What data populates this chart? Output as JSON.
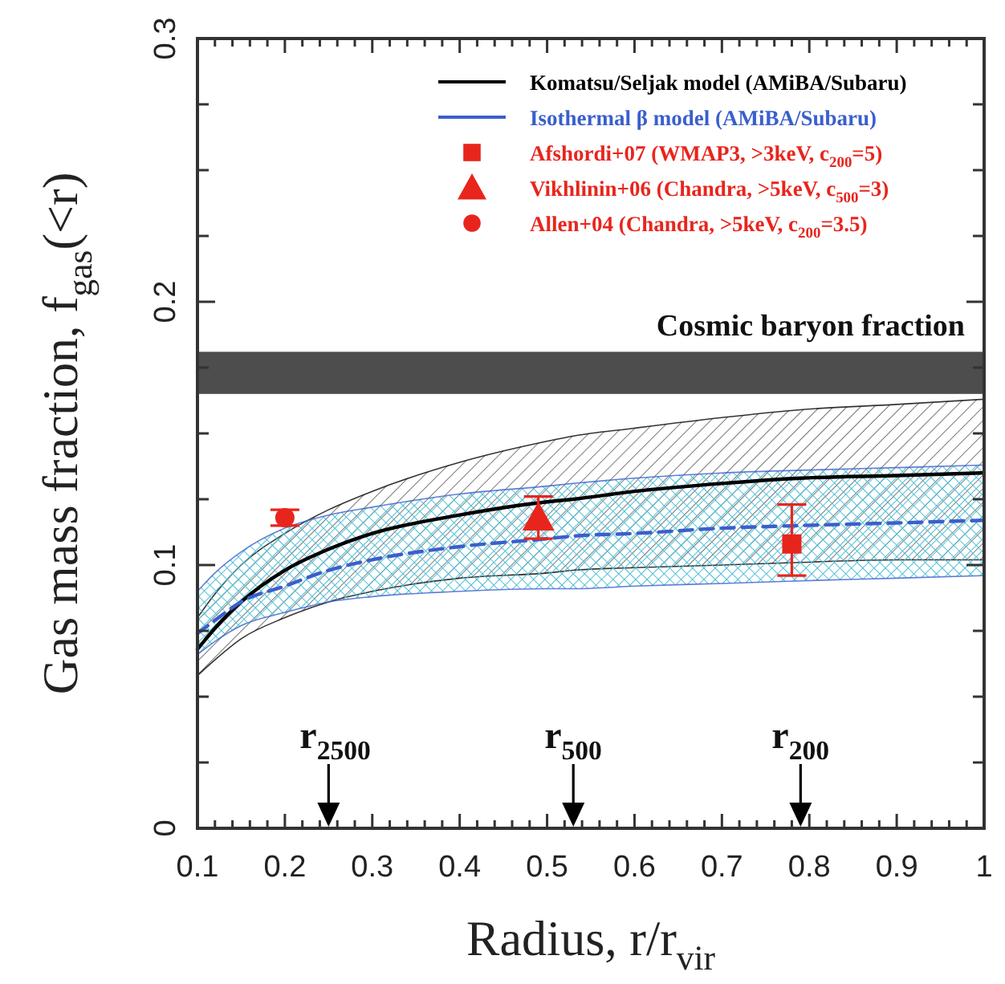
{
  "chart_data": {
    "type": "line",
    "xlabel": "Radius, r/r$_{vir}$",
    "ylabel": "Gas mass fraction, f$_{gas}$(<r)",
    "xlim": [
      0.1,
      1
    ],
    "ylim": [
      0,
      0.3
    ],
    "xticks": [
      0.1,
      {
        "value": 0.12,
        "label": null
      },
      {
        "value": 0.14,
        "label": null
      },
      {
        "value": 0.16,
        "label": null
      },
      {
        "value": 0.18,
        "label": null
      },
      0.2,
      {
        "value": 0.22,
        "label": null
      },
      {
        "value": 0.24,
        "label": null
      },
      {
        "value": 0.26,
        "label": null
      },
      {
        "value": 0.28,
        "label": null
      },
      0.3,
      {
        "value": 0.32,
        "label": null
      },
      {
        "value": 0.34,
        "label": null
      },
      {
        "value": 0.36,
        "label": null
      },
      {
        "value": 0.38,
        "label": null
      },
      0.4,
      {
        "value": 0.42,
        "label": null
      },
      {
        "value": 0.44,
        "label": null
      },
      {
        "value": 0.46,
        "label": null
      },
      {
        "value": 0.48,
        "label": null
      },
      0.5,
      {
        "value": 0.52,
        "label": null
      },
      {
        "value": 0.54,
        "label": null
      },
      {
        "value": 0.56,
        "label": null
      },
      {
        "value": 0.58,
        "label": null
      },
      0.6,
      {
        "value": 0.62,
        "label": null
      },
      {
        "value": 0.64,
        "label": null
      },
      {
        "value": 0.66,
        "label": null
      },
      {
        "value": 0.68,
        "label": null
      },
      0.7,
      {
        "value": 0.72,
        "label": null
      },
      {
        "value": 0.74,
        "label": null
      },
      {
        "value": 0.76,
        "label": null
      },
      {
        "value": 0.78,
        "label": null
      },
      0.8,
      {
        "value": 0.82,
        "label": null
      },
      {
        "value": 0.84,
        "label": null
      },
      {
        "value": 0.86,
        "label": null
      },
      {
        "value": 0.88,
        "label": null
      },
      0.9,
      {
        "value": 0.92,
        "label": null
      },
      {
        "value": 0.94,
        "label": null
      },
      {
        "value": 0.96,
        "label": null
      },
      {
        "value": 0.98,
        "label": null
      },
      1
    ],
    "yticks": [
      0,
      {
        "value": 0.025,
        "label": null
      },
      {
        "value": 0.05,
        "label": null
      },
      {
        "value": 0.075,
        "label": null
      },
      0.1,
      {
        "value": 0.125,
        "label": null
      },
      {
        "value": 0.15,
        "label": null
      },
      {
        "value": 0.175,
        "label": null
      },
      0.2,
      {
        "value": 0.225,
        "label": null
      },
      {
        "value": 0.25,
        "label": null
      },
      {
        "value": 0.275,
        "label": null
      },
      0.3
    ],
    "legend": "top right",
    "x": [
      0.1,
      0.12,
      0.15,
      0.2,
      0.25,
      0.3,
      0.4,
      0.5,
      0.53,
      0.6,
      0.7,
      0.79,
      0.9,
      1.0
    ],
    "series": [
      {
        "name": "Komatsu/Seljak model (AMiBA/Subaru)",
        "color": "#000000",
        "line_style": "solid",
        "values": [
          0.068,
          0.076,
          0.086,
          0.098,
          0.106,
          0.112,
          0.119,
          0.124,
          0.125,
          0.128,
          0.131,
          0.133,
          0.134,
          0.135
        ],
        "lower": [
          0.058,
          0.064,
          0.072,
          0.08,
          0.086,
          0.09,
          0.095,
          0.097,
          0.098,
          0.099,
          0.1,
          0.101,
          0.102,
          0.102
        ],
        "upper": [
          0.08,
          0.089,
          0.1,
          0.112,
          0.121,
          0.128,
          0.139,
          0.147,
          0.149,
          0.152,
          0.156,
          0.159,
          0.161,
          0.163
        ]
      },
      {
        "name": "Isothermal β model (AMiBA/Subaru)",
        "color": "#3a5fcd",
        "line_style": "dashed",
        "values": [
          0.074,
          0.079,
          0.086,
          0.092,
          0.098,
          0.102,
          0.107,
          0.11,
          0.111,
          0.112,
          0.114,
          0.115,
          0.116,
          0.117
        ],
        "lower": [
          0.066,
          0.071,
          0.077,
          0.082,
          0.086,
          0.088,
          0.09,
          0.091,
          0.091,
          0.092,
          0.093,
          0.094,
          0.095,
          0.096
        ],
        "upper": [
          0.09,
          0.097,
          0.105,
          0.114,
          0.119,
          0.122,
          0.127,
          0.13,
          0.131,
          0.133,
          0.135,
          0.136,
          0.137,
          0.138
        ]
      },
      {
        "name": "Afshordi+07 (WMAP3, >3keV, c$_{200}$=5)",
        "type": "scatter",
        "marker": "square",
        "color": "#e8251d",
        "x": [
          0.78
        ],
        "values": [
          0.108
        ],
        "errors": [
          [
            0.096,
            0.123
          ]
        ]
      },
      {
        "name": "Vikhlinin+06 (Chandra, >5keV, c$_{500}$=3)",
        "type": "scatter",
        "marker": "triangle",
        "color": "#e8251d",
        "x": [
          0.49
        ],
        "values": [
          0.118
        ],
        "errors": [
          0.008
        ]
      },
      {
        "name": "Allen+04 (Chandra, >5keV, c$_{200}$=3.5)",
        "type": "scatter",
        "marker": "circle",
        "color": "#e8251d",
        "x": [
          0.2
        ],
        "values": [
          0.118
        ],
        "errors": [
          0.003
        ]
      }
    ],
    "bands": [
      {
        "axis": "y",
        "from": 0.165,
        "to": 0.181,
        "label": "Cosmic baryon fraction",
        "color": "#4d4d4d"
      }
    ],
    "annotations": [
      {
        "text": "r$_{2500}$",
        "x": 0.25
      },
      {
        "text": "r$_{500}$",
        "x": 0.53
      },
      {
        "text": "r$_{200}$",
        "x": 0.79
      }
    ]
  }
}
